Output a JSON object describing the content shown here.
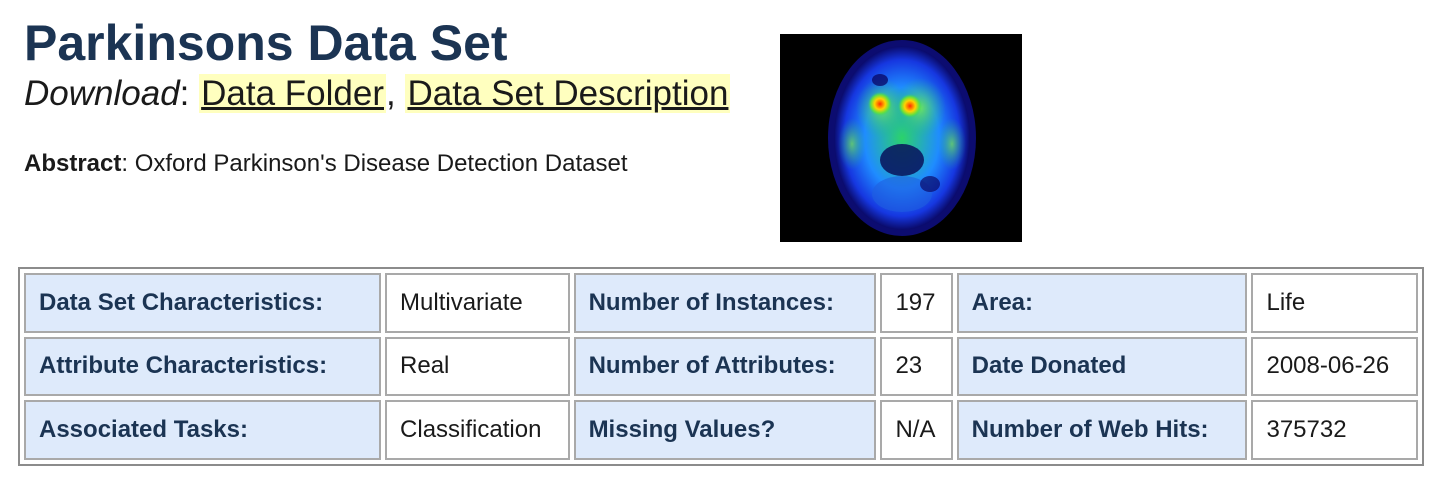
{
  "title": "Parkinsons Data Set",
  "download": {
    "label": "Download",
    "separator": ":",
    "links": [
      {
        "label": "Data Folder"
      },
      {
        "label": "Data Set Description"
      }
    ],
    "comma": ","
  },
  "abstract": {
    "label": "Abstract",
    "text": ": Oxford Parkinson's Disease Detection Dataset"
  },
  "image": {
    "description_icon": "brain-scan-image"
  },
  "table": {
    "rows": [
      [
        {
          "label": "Data Set Characteristics:",
          "value": "Multivariate"
        },
        {
          "label": "Number of Instances:",
          "value": "197"
        },
        {
          "label": "Area:",
          "value": "Life"
        }
      ],
      [
        {
          "label": "Attribute Characteristics:",
          "value": "Real"
        },
        {
          "label": "Number of Attributes:",
          "value": "23"
        },
        {
          "label": "Date Donated",
          "value": "2008-06-26"
        }
      ],
      [
        {
          "label": "Associated Tasks:",
          "value": "Classification"
        },
        {
          "label": "Missing Values?",
          "value": "N/A"
        },
        {
          "label": "Number of Web Hits:",
          "value": "375732"
        }
      ]
    ]
  },
  "colors": {
    "title": "#1b3453",
    "link_highlight": "#ffffbf",
    "label_cell_bg": "#deeafb"
  }
}
